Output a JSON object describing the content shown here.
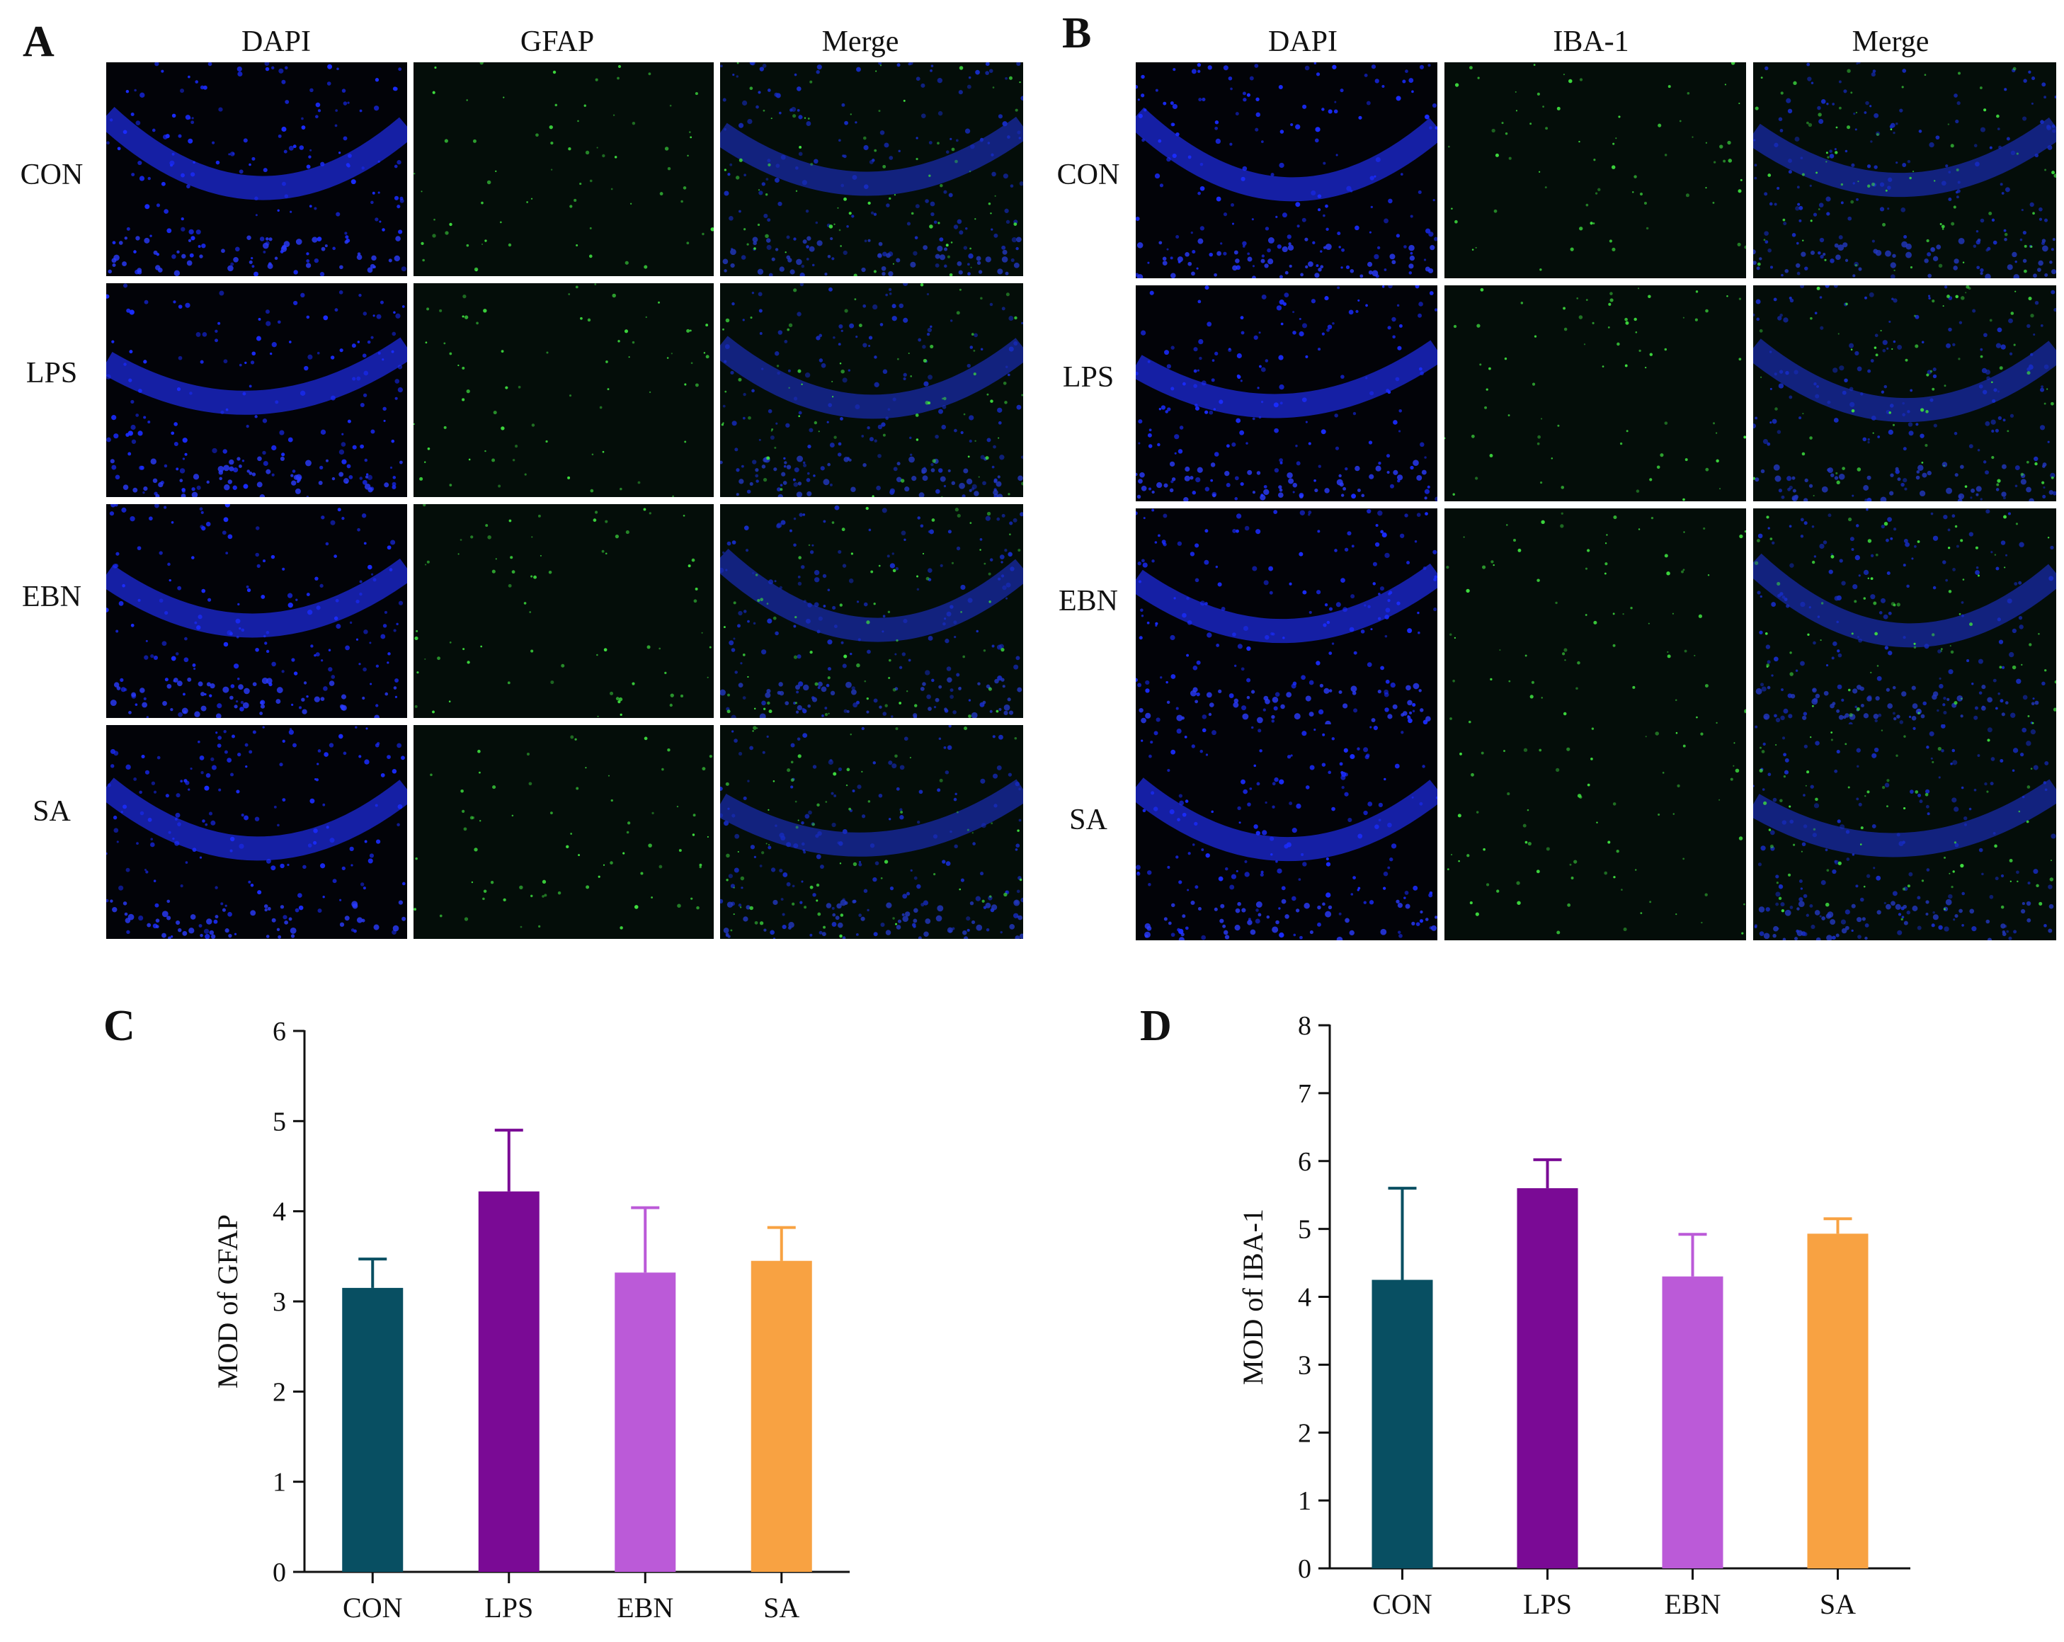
{
  "panels": {
    "A": {
      "letter": "A",
      "columns": [
        "DAPI",
        "GFAP",
        "Merge"
      ],
      "rows": [
        "CON",
        "LPS",
        "EBN",
        "SA"
      ]
    },
    "B": {
      "letter": "B",
      "columns": [
        "DAPI",
        "IBA-1",
        "Merge"
      ],
      "rows": [
        "CON",
        "LPS",
        "EBN",
        "SA"
      ]
    },
    "C": {
      "letter": "C"
    },
    "D": {
      "letter": "D"
    }
  },
  "colors": {
    "CON": "#084f62",
    "LPS": "#7a0a95",
    "EBN": "#bb5ad8",
    "SA": "#f8a242",
    "dapi": "#1a2cff",
    "marker": "#3fe040"
  },
  "chart_data": [
    {
      "type": "bar",
      "panel": "C",
      "categories": [
        "CON",
        "LPS",
        "EBN",
        "SA"
      ],
      "values": [
        3.15,
        4.22,
        3.32,
        3.45
      ],
      "errors": [
        0.32,
        0.68,
        0.72,
        0.37
      ],
      "ylabel": "MOD of GFAP",
      "xlabel": "",
      "ylim": [
        0,
        6
      ],
      "yticks": [
        0,
        1,
        2,
        3,
        4,
        5,
        6
      ],
      "grid": false
    },
    {
      "type": "bar",
      "panel": "D",
      "categories": [
        "CON",
        "LPS",
        "EBN",
        "SA"
      ],
      "values": [
        4.25,
        5.6,
        4.3,
        4.93
      ],
      "errors": [
        1.35,
        0.42,
        0.62,
        0.22
      ],
      "ylabel": "MOD of IBA-1",
      "xlabel": "",
      "ylim": [
        0,
        8
      ],
      "yticks": [
        0,
        1,
        2,
        3,
        4,
        5,
        6,
        7,
        8
      ],
      "grid": false
    }
  ]
}
